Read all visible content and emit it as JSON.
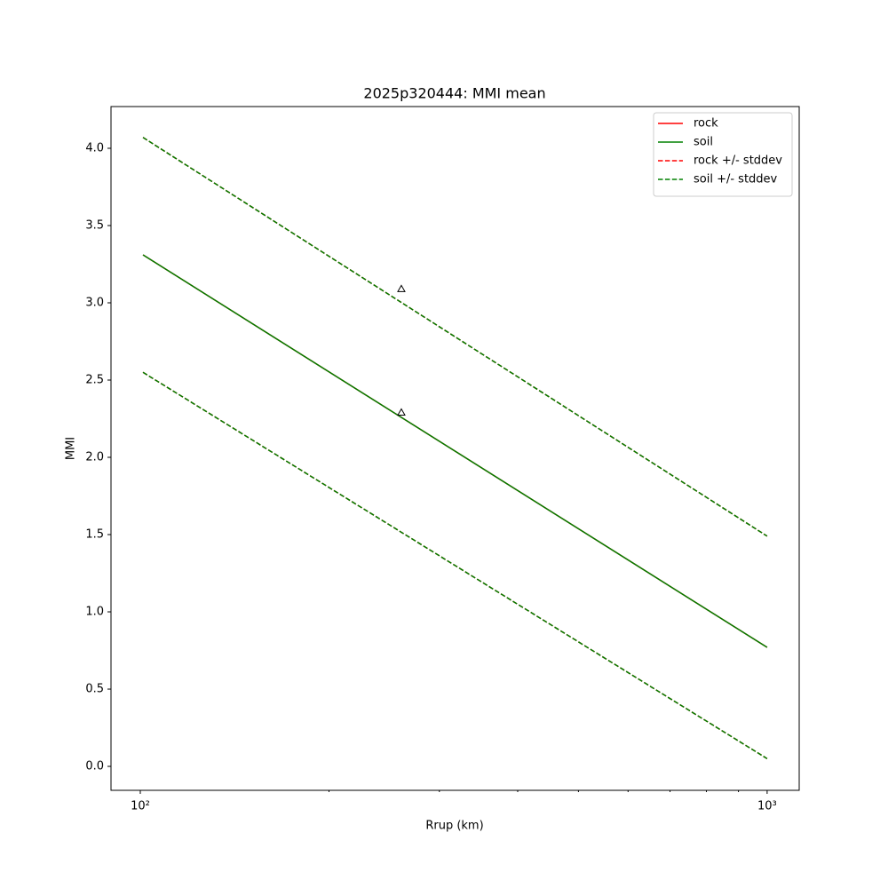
{
  "chart_data": {
    "type": "line",
    "title": "2025p320444: MMI mean",
    "x_label": "Rrup (km)",
    "y_label": "MMI",
    "xscale": "log",
    "xlim": [
      89.8,
      1125.0
    ],
    "ylim": [
      -0.155,
      4.27
    ],
    "xticks": [
      {
        "value": 100,
        "label": "10²"
      },
      {
        "value": 1000,
        "label": "10³"
      }
    ],
    "xminorticks": [
      200,
      300,
      400,
      500,
      600,
      700,
      800,
      900
    ],
    "yticks": [
      {
        "value": 0,
        "label": "0.0"
      },
      {
        "value": 0.5,
        "label": "0.5"
      },
      {
        "value": 1,
        "label": "1.0"
      },
      {
        "value": 1.5,
        "label": "1.5"
      },
      {
        "value": 2,
        "label": "2.0"
      },
      {
        "value": 2.5,
        "label": "2.5"
      },
      {
        "value": 3,
        "label": "3.0"
      },
      {
        "value": 3.5,
        "label": "3.5"
      },
      {
        "value": 4,
        "label": "4.0"
      }
    ],
    "legend": "upper right",
    "series": [
      {
        "name": "rock",
        "color": "#ff0000",
        "style": "solid",
        "x": [
          101,
          1000
        ],
        "values": [
          3.31,
          0.77
        ]
      },
      {
        "name": "soil",
        "color": "#008000",
        "style": "solid",
        "x": [
          101,
          1000
        ],
        "values": [
          3.31,
          0.77
        ]
      },
      {
        "name": "rock +/- stddev",
        "color": "#ff0000",
        "style": "dashed",
        "x": [
          101,
          1000
        ],
        "values": [
          4.07,
          1.49
        ]
      },
      {
        "name": "rock +/- stddev",
        "color": "#ff0000",
        "style": "dashed",
        "x": [
          101,
          1000
        ],
        "values": [
          2.55,
          0.05
        ]
      },
      {
        "name": "soil +/- stddev",
        "color": "#008000",
        "style": "dashed",
        "x": [
          101,
          1000
        ],
        "values": [
          4.07,
          1.49
        ]
      },
      {
        "name": "soil +/- stddev",
        "color": "#008000",
        "style": "dashed",
        "x": [
          101,
          1000
        ],
        "values": [
          2.55,
          0.05
        ]
      },
      {
        "color": "#000000",
        "style": "marker",
        "x": [
          260.9,
          260.9
        ],
        "values": [
          3.09,
          2.29
        ]
      }
    ]
  }
}
